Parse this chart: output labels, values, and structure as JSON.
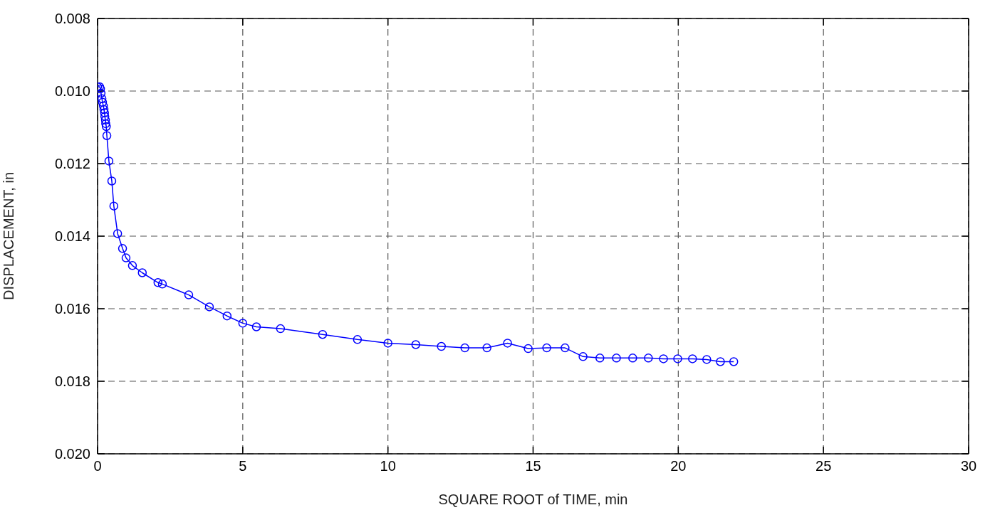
{
  "chart_data": {
    "type": "line",
    "xlabel": "SQUARE ROOT of TIME, min",
    "ylabel": "DISPLACEMENT, in",
    "x": [
      0,
      0.07,
      0.1,
      0.12,
      0.15,
      0.17,
      0.2,
      0.22,
      0.24,
      0.25,
      0.27,
      0.28,
      0.3,
      0.32,
      0.39,
      0.49,
      0.56,
      0.69,
      0.86,
      0.98,
      1.2,
      1.54,
      2.08,
      2.23,
      3.14,
      3.85,
      4.46,
      5,
      5.47,
      6.3,
      7.75,
      8.95,
      10,
      10.96,
      11.84,
      12.65,
      13.41,
      14.12,
      14.83,
      15.47,
      16.1,
      16.72,
      17.3,
      17.87,
      18.43,
      18.97,
      19.49,
      19.98,
      20.49,
      20.98,
      21.45,
      21.91
    ],
    "series": [
      {
        "color": "#0000ff",
        "values": [
          0.00988,
          0.00988,
          0.00994,
          0.01006,
          0.01021,
          0.01031,
          0.01041,
          0.01051,
          0.0106,
          0.0107,
          0.0108,
          0.0109,
          0.01098,
          0.01123,
          0.01193,
          0.01248,
          0.01317,
          0.01393,
          0.01434,
          0.0146,
          0.01481,
          0.01501,
          0.01528,
          0.01532,
          0.01562,
          0.01595,
          0.0162,
          0.0164,
          0.0165,
          0.01655,
          0.01671,
          0.01685,
          0.01695,
          0.01699,
          0.01704,
          0.01708,
          0.01708,
          0.01695,
          0.0171,
          0.01708,
          0.01708,
          0.01732,
          0.01736,
          0.01736,
          0.01736,
          0.01736,
          0.01738,
          0.01738,
          0.01738,
          0.0174,
          0.01746,
          0.01746
        ]
      }
    ],
    "xlim": [
      0,
      30
    ],
    "xticks": [
      0,
      5,
      10,
      15,
      20,
      25,
      30
    ],
    "ylim": [
      0.02,
      0.008
    ],
    "yticks": [
      0.008,
      {
        "value": 0.01,
        "label": "0.010"
      },
      0.012,
      0.014,
      0.016,
      0.018,
      {
        "value": 0.02,
        "label": "0.020"
      }
    ],
    "grid": true,
    "marker": "circle",
    "line_style": "solid"
  }
}
